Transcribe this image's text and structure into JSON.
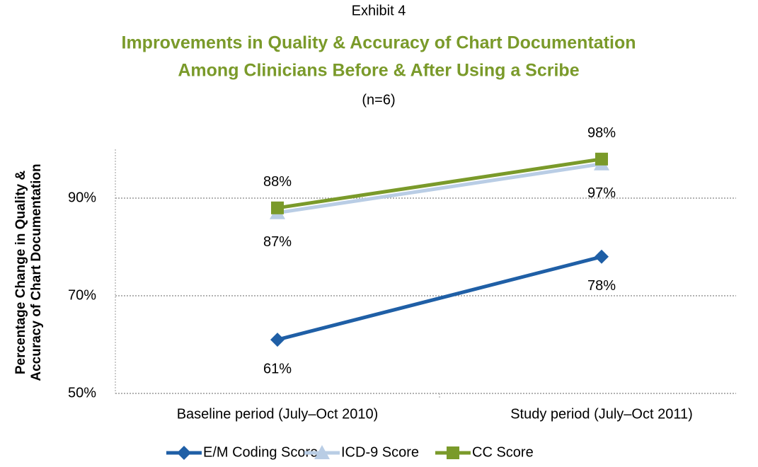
{
  "chart_data": {
    "type": "line",
    "supertitle": "Exhibit 4",
    "title": [
      "Improvements in Quality & Accuracy of Chart Documentation",
      "Among Clinicians Before & After Using a Scribe"
    ],
    "subtitle": "(n=6)",
    "y_label": [
      "Percentage Change in Quality &",
      "Accuracy of Chart Documentation"
    ],
    "categories": [
      "Baseline period (July–Oct 2010)",
      "Study period (July–Oct 2011)"
    ],
    "series": [
      {
        "name": "E/M Coding Score",
        "color": "#1f5fa6",
        "marker": "diamond",
        "values": [
          61,
          78
        ],
        "value_labels": [
          "61%",
          "78%"
        ],
        "label_position": [
          "below",
          "below"
        ]
      },
      {
        "name": "ICD-9 Score",
        "color": "#b9cde5",
        "marker": "triangle",
        "values": [
          87,
          97
        ],
        "value_labels": [
          "87%",
          "97%"
        ],
        "label_position": [
          "below",
          "below"
        ]
      },
      {
        "name": "CC Score",
        "color": "#7a9a2a",
        "marker": "square",
        "values": [
          88,
          98
        ],
        "value_labels": [
          "88%",
          "98%"
        ],
        "label_position": [
          "above",
          "above"
        ]
      }
    ],
    "ylim": [
      50,
      100
    ],
    "yticks": [
      {
        "value": 50,
        "label": "50%"
      },
      {
        "value": 70,
        "label": "70%"
      },
      {
        "value": 90,
        "label": "90%"
      }
    ],
    "grid": true,
    "legend": "bottom"
  }
}
